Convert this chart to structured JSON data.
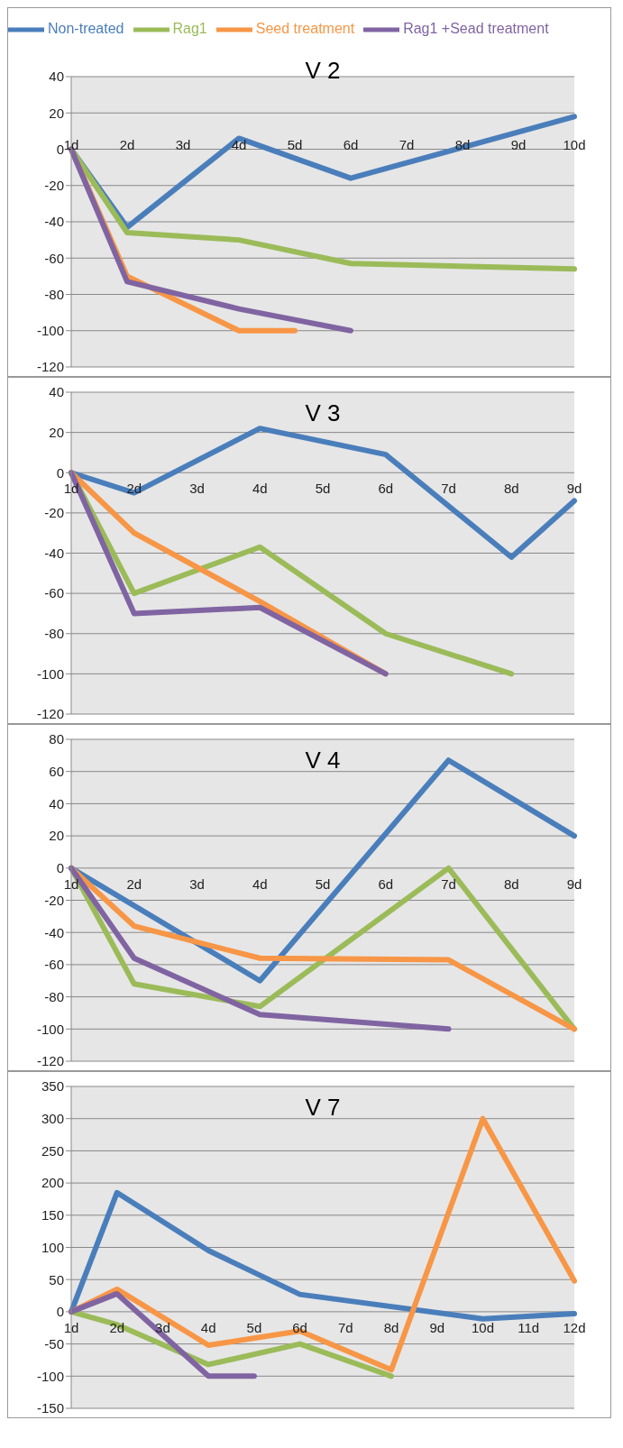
{
  "chart_data": [
    {
      "type": "line",
      "title": "V 2",
      "categories": [
        "1d",
        "2d",
        "3d",
        "4d",
        "5d",
        "6d",
        "7d",
        "8d",
        "9d",
        "10d"
      ],
      "ylim": [
        -120,
        40
      ],
      "yticks": [
        -120,
        -100,
        -80,
        -60,
        -40,
        -20,
        0,
        20,
        40
      ],
      "grid": "y",
      "legend": "top",
      "marker": "none",
      "line_style": "solid",
      "series": [
        {
          "name": "Non-treated",
          "color": "#4a7ebb",
          "values": [
            0,
            -43,
            null,
            6,
            null,
            -16,
            null,
            null,
            null,
            18
          ]
        },
        {
          "name": "Rag1",
          "color": "#9bbb59",
          "values": [
            0,
            -46,
            null,
            -50,
            null,
            -63,
            null,
            null,
            null,
            -66
          ]
        },
        {
          "name": "Seed treatment",
          "color": "#f79646",
          "values": [
            0,
            -70,
            null,
            -100,
            -100,
            null,
            null,
            null,
            null,
            null
          ]
        },
        {
          "name": "Rag1 +Sead treatment",
          "color": "#8064a2",
          "values": [
            0,
            -73,
            null,
            -88,
            null,
            -100,
            null,
            null,
            null,
            null
          ]
        }
      ]
    },
    {
      "type": "line",
      "title": "V 3",
      "categories": [
        "1d",
        "2d",
        "3d",
        "4d",
        "5d",
        "6d",
        "7d",
        "8d",
        "9d"
      ],
      "ylim": [
        -120,
        40
      ],
      "yticks": [
        -120,
        -100,
        -80,
        -60,
        -40,
        -20,
        0,
        20,
        40
      ],
      "grid": "y",
      "marker": "none",
      "line_style": "solid",
      "series": [
        {
          "color": "#4a7ebb",
          "values": [
            0,
            -10,
            null,
            22,
            null,
            9,
            null,
            -42,
            -14
          ]
        },
        {
          "color": "#9bbb59",
          "values": [
            0,
            -60,
            null,
            -37,
            null,
            -80,
            null,
            -100,
            null
          ]
        },
        {
          "color": "#f79646",
          "values": [
            0,
            -30,
            null,
            -64,
            null,
            -100,
            null,
            null,
            null
          ]
        },
        {
          "color": "#8064a2",
          "values": [
            0,
            -70,
            null,
            -67,
            null,
            -100,
            null,
            null,
            null
          ]
        }
      ]
    },
    {
      "type": "line",
      "title": "V 4",
      "categories": [
        "1d",
        "2d",
        "3d",
        "4d",
        "5d",
        "6d",
        "7d",
        "8d",
        "9d"
      ],
      "ylim": [
        -120,
        80
      ],
      "yticks": [
        -120,
        -100,
        -80,
        -60,
        -40,
        -20,
        0,
        20,
        40,
        60,
        80
      ],
      "grid": "y",
      "marker": "none",
      "line_style": "solid",
      "series": [
        {
          "color": "#4a7ebb",
          "values": [
            0,
            null,
            null,
            -70,
            null,
            null,
            67,
            null,
            20
          ]
        },
        {
          "color": "#9bbb59",
          "values": [
            0,
            -72,
            null,
            -86,
            null,
            null,
            0,
            null,
            -100
          ]
        },
        {
          "color": "#f79646",
          "values": [
            0,
            -36,
            null,
            -56,
            null,
            null,
            -57,
            null,
            -100
          ]
        },
        {
          "color": "#8064a2",
          "values": [
            0,
            -56,
            null,
            -91,
            null,
            null,
            -100,
            null,
            null
          ]
        }
      ]
    },
    {
      "type": "line",
      "title": "V 7",
      "categories": [
        "1d",
        "2d",
        "3d",
        "4d",
        "5d",
        "6d",
        "7d",
        "8d",
        "9d",
        "10d",
        "11d",
        "12d"
      ],
      "ylim": [
        -150,
        350
      ],
      "yticks": [
        -150,
        -100,
        -50,
        0,
        50,
        100,
        150,
        200,
        250,
        300,
        350
      ],
      "grid": "y",
      "marker": "none",
      "line_style": "solid",
      "series": [
        {
          "color": "#4a7ebb",
          "values": [
            0,
            185,
            null,
            95,
            null,
            27,
            null,
            null,
            null,
            -11,
            null,
            -3
          ]
        },
        {
          "color": "#9bbb59",
          "values": [
            0,
            -20,
            null,
            -82,
            null,
            -50,
            null,
            -100,
            null,
            null,
            null,
            null
          ]
        },
        {
          "color": "#f79646",
          "values": [
            0,
            35,
            null,
            -52,
            null,
            -30,
            null,
            -90,
            null,
            300,
            null,
            48
          ]
        },
        {
          "color": "#8064a2",
          "values": [
            0,
            28,
            null,
            -100,
            -100,
            null,
            null,
            null,
            null,
            null,
            null,
            null
          ]
        }
      ]
    }
  ]
}
